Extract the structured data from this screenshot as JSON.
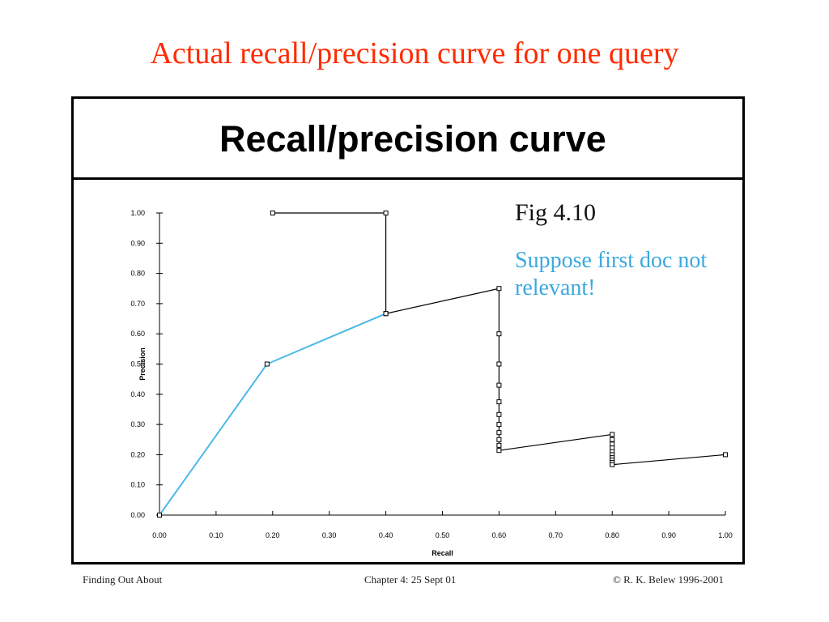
{
  "slide": {
    "title": "Actual recall/precision curve for one query"
  },
  "figure": {
    "header_title": "Recall/precision curve",
    "fig_label": "Fig 4.10",
    "annotation": "Suppose first doc not relevant!"
  },
  "footer": {
    "left": "Finding Out About",
    "center": "Chapter 4: 25 Sept 01",
    "right": "© R. K. Belew 1996-2001"
  },
  "chart_data": {
    "type": "line",
    "xlabel": "Recall",
    "ylabel": "Precision",
    "xlim": [
      0,
      1
    ],
    "ylim": [
      0,
      1
    ],
    "x_ticks": [
      "0.00",
      "0.10",
      "0.20",
      "0.30",
      "0.40",
      "0.50",
      "0.60",
      "0.70",
      "0.80",
      "0.90",
      "1.00"
    ],
    "y_ticks": [
      "0.00",
      "0.10",
      "0.20",
      "0.30",
      "0.40",
      "0.50",
      "0.60",
      "0.70",
      "0.80",
      "0.90",
      "1.00"
    ],
    "colors": {
      "actual": "#000000",
      "first_doc_not_relevant": "#4db8e8"
    },
    "series": [
      {
        "key": "actual",
        "points": [
          [
            0.2,
            1.0
          ],
          [
            0.4,
            1.0
          ],
          [
            0.4,
            0.667
          ],
          [
            0.6,
            0.75
          ],
          [
            0.6,
            0.6
          ],
          [
            0.6,
            0.5
          ],
          [
            0.6,
            0.43
          ],
          [
            0.6,
            0.375
          ],
          [
            0.6,
            0.333
          ],
          [
            0.6,
            0.3
          ],
          [
            0.6,
            0.273
          ],
          [
            0.6,
            0.25
          ],
          [
            0.6,
            0.231
          ],
          [
            0.6,
            0.214
          ],
          [
            0.8,
            0.267
          ],
          [
            0.8,
            0.25
          ],
          [
            0.8,
            0.235
          ],
          [
            0.8,
            0.222
          ],
          [
            0.8,
            0.21
          ],
          [
            0.8,
            0.2
          ],
          [
            0.8,
            0.19
          ],
          [
            0.8,
            0.182
          ],
          [
            0.8,
            0.174
          ],
          [
            0.8,
            0.167
          ],
          [
            1.0,
            0.2
          ]
        ]
      },
      {
        "key": "first_doc_not_relevant",
        "points": [
          [
            0.0,
            0.0
          ],
          [
            0.19,
            0.5
          ],
          [
            0.4,
            0.667
          ]
        ]
      }
    ]
  }
}
